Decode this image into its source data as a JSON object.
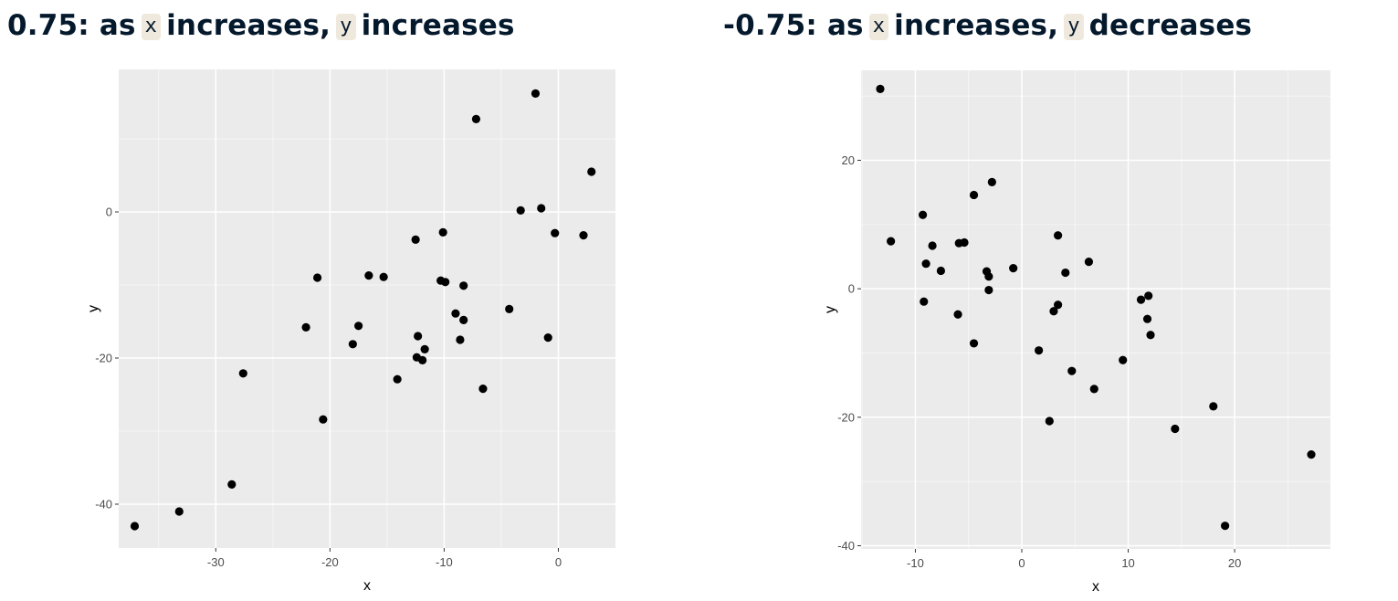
{
  "panels": [
    {
      "heading": {
        "prefix": "0.75: as",
        "var_x": "x",
        "mid": "increases,",
        "var_y": "y",
        "suffix": "increases"
      }
    },
    {
      "heading": {
        "prefix": "-0.75: as",
        "var_x": "x",
        "mid": "increases,",
        "var_y": "y",
        "suffix": "decreases"
      }
    }
  ],
  "colors": {
    "heading_text": "#05192d",
    "code_background": "#efe9dd",
    "panel_background": "#ebebeb",
    "gridline": "#ffffff",
    "point": "#000000"
  },
  "chart_data": [
    {
      "type": "scatter",
      "title": "",
      "xlabel": "x",
      "ylabel": "y",
      "xlim": [
        -38.5,
        5
      ],
      "ylim": [
        -46,
        19.5
      ],
      "xticks": [
        -30,
        -20,
        -10,
        0
      ],
      "yticks": [
        -40,
        -20,
        0
      ],
      "xtick_labels": [
        "-30",
        "-20",
        "-10",
        "0"
      ],
      "ytick_labels": [
        "-40",
        "-20",
        "0"
      ],
      "xminor": [
        -35,
        -25,
        -15,
        -5
      ],
      "yminor": [
        -30,
        -10,
        10
      ],
      "grid": true,
      "x": [
        -37.1,
        -33.2,
        -28.6,
        -27.6,
        -22.1,
        -21.1,
        -20.6,
        -18,
        -17.5,
        -16.6,
        -15.3,
        -14.1,
        -12.5,
        -12.3,
        -12.4,
        -11.9,
        -11.7,
        -10.3,
        -10.1,
        -9.9,
        -9,
        -8.6,
        -8.3,
        -8.3,
        -7.2,
        -6.6,
        -4.3,
        -3.3,
        -2,
        -1.5,
        -0.9,
        -0.3,
        2.2,
        2.9
      ],
      "y": [
        -43,
        -41,
        -37.3,
        -22.1,
        -15.8,
        -9,
        -28.4,
        -18.1,
        -15.6,
        -8.7,
        -8.9,
        -22.9,
        -3.8,
        -17,
        -19.9,
        -20.3,
        -18.8,
        -9.4,
        -2.8,
        -9.6,
        -13.9,
        -17.5,
        -10.1,
        -14.8,
        12.7,
        -24.2,
        -13.3,
        0.2,
        16.2,
        0.5,
        -17.2,
        -2.9,
        -3.2,
        5.5
      ]
    },
    {
      "type": "scatter",
      "title": "",
      "xlabel": "x",
      "ylabel": "y",
      "xlim": [
        -15.1,
        29
      ],
      "ylim": [
        -40.5,
        34
      ],
      "xticks": [
        -10,
        0,
        10,
        20
      ],
      "yticks": [
        -40,
        -20,
        0,
        20
      ],
      "xtick_labels": [
        "-10",
        "0",
        "10",
        "20"
      ],
      "ytick_labels": [
        "-40",
        "-20",
        "0",
        "20"
      ],
      "xminor": [
        -15,
        -5,
        5,
        15,
        25
      ],
      "yminor": [
        -30,
        -10,
        10,
        30
      ],
      "grid": true,
      "x": [
        -13.3,
        -12.3,
        -9.3,
        -9.2,
        -9,
        -8.4,
        -7.6,
        -6,
        -5.9,
        -5.4,
        -4.5,
        -4.5,
        -3.3,
        -3.1,
        -3.1,
        -2.8,
        -0.8,
        1.6,
        2.6,
        3,
        3.4,
        3.4,
        4.1,
        4.7,
        6.3,
        6.8,
        9.5,
        11.2,
        11.8,
        11.9,
        12.1,
        14.4,
        18,
        19.1,
        27.2
      ],
      "y": [
        31.1,
        7.4,
        11.5,
        -2,
        3.9,
        6.7,
        2.8,
        -4,
        7.1,
        7.2,
        14.6,
        -8.5,
        2.7,
        -0.2,
        1.9,
        16.6,
        3.2,
        -9.6,
        -20.6,
        -3.5,
        -2.5,
        8.3,
        2.5,
        -12.8,
        4.2,
        -15.6,
        -11.1,
        -1.7,
        -4.7,
        -1.1,
        -7.2,
        -21.8,
        -18.3,
        -36.9,
        -25.8
      ]
    }
  ]
}
